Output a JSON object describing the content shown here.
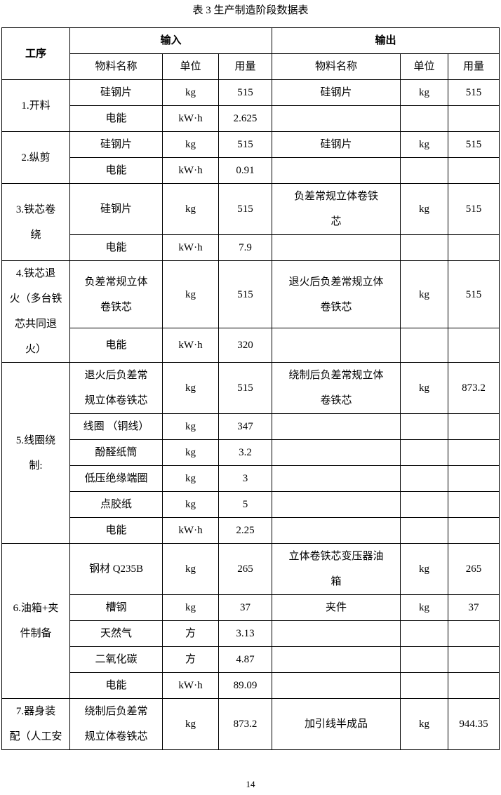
{
  "title": "表 3  生产制造阶段数据表",
  "header": {
    "process": "工序",
    "input": "输入",
    "output": "输出",
    "sub": [
      "物料名称",
      "单位",
      "用量",
      "物料名称",
      "单位",
      "用量"
    ]
  },
  "groups": [
    {
      "process": [
        "1.开料"
      ],
      "rows": [
        {
          "in_name": [
            "硅钢片"
          ],
          "in_unit": "kg",
          "in_qty": "515",
          "out_name": [
            "硅钢片"
          ],
          "out_unit": "kg",
          "out_qty": "515"
        },
        {
          "in_name": [
            "电能"
          ],
          "in_unit": "kW·h",
          "in_qty": "2.625",
          "out_name": [],
          "out_unit": "",
          "out_qty": ""
        }
      ]
    },
    {
      "process": [
        "2.纵剪"
      ],
      "rows": [
        {
          "in_name": [
            "硅钢片"
          ],
          "in_unit": "kg",
          "in_qty": "515",
          "out_name": [
            "硅钢片"
          ],
          "out_unit": "kg",
          "out_qty": "515"
        },
        {
          "in_name": [
            "电能"
          ],
          "in_unit": "kW·h",
          "in_qty": "0.91",
          "out_name": [],
          "out_unit": "",
          "out_qty": ""
        }
      ]
    },
    {
      "process": [
        "3.铁芯卷",
        "绕"
      ],
      "rows": [
        {
          "in_name": [
            "硅钢片"
          ],
          "in_unit": "kg",
          "in_qty": "515",
          "out_name": [
            "负差常规立体卷铁",
            "芯"
          ],
          "out_unit": "kg",
          "out_qty": "515"
        },
        {
          "in_name": [
            "电能"
          ],
          "in_unit": "kW·h",
          "in_qty": "7.9",
          "out_name": [],
          "out_unit": "",
          "out_qty": ""
        }
      ]
    },
    {
      "process": [
        "4.铁芯退",
        "火（多台铁",
        "芯共同退",
        "火）"
      ],
      "rows": [
        {
          "in_name": [
            "负差常规立体",
            "卷铁芯"
          ],
          "in_unit": "kg",
          "in_qty": "515",
          "out_name": [
            "退火后负差常规立体",
            "卷铁芯"
          ],
          "out_unit": "kg",
          "out_qty": "515"
        },
        {
          "in_name": [
            "电能"
          ],
          "in_unit": "kW·h",
          "in_qty": "320",
          "out_name": [],
          "out_unit": "",
          "out_qty": ""
        }
      ]
    },
    {
      "process": [
        "5.线圈绕",
        "制:"
      ],
      "rows": [
        {
          "in_name": [
            "退火后负差常",
            "规立体卷铁芯"
          ],
          "in_unit": "kg",
          "in_qty": "515",
          "out_name": [
            "绕制后负差常规立体",
            "卷铁芯"
          ],
          "out_unit": "kg",
          "out_qty": "873.2"
        },
        {
          "in_name": [
            "线圈 （铜线）"
          ],
          "in_unit": "kg",
          "in_qty": "347",
          "out_name": [],
          "out_unit": "",
          "out_qty": ""
        },
        {
          "in_name": [
            "酚醛纸筒"
          ],
          "in_unit": "kg",
          "in_qty": "3.2",
          "out_name": [],
          "out_unit": "",
          "out_qty": ""
        },
        {
          "in_name": [
            "低压绝缘端圈"
          ],
          "in_unit": "kg",
          "in_qty": "3",
          "out_name": [],
          "out_unit": "",
          "out_qty": ""
        },
        {
          "in_name": [
            "点胶纸"
          ],
          "in_unit": "kg",
          "in_qty": "5",
          "out_name": [],
          "out_unit": "",
          "out_qty": ""
        },
        {
          "in_name": [
            "电能"
          ],
          "in_unit": "kW·h",
          "in_qty": "2.25",
          "out_name": [],
          "out_unit": "",
          "out_qty": ""
        }
      ]
    },
    {
      "process": [
        "6.油箱+夹",
        "件制备"
      ],
      "rows": [
        {
          "in_name": [
            "钢材 Q235B"
          ],
          "in_unit": "kg",
          "in_qty": "265",
          "out_name": [
            "立体卷铁芯变压器油",
            "箱"
          ],
          "out_unit": "kg",
          "out_qty": "265"
        },
        {
          "in_name": [
            "槽钢"
          ],
          "in_unit": "kg",
          "in_qty": "37",
          "out_name": [
            "夹件"
          ],
          "out_unit": "kg",
          "out_qty": "37"
        },
        {
          "in_name": [
            "天然气"
          ],
          "in_unit": "方",
          "in_qty": "3.13",
          "out_name": [],
          "out_unit": "",
          "out_qty": ""
        },
        {
          "in_name": [
            "二氧化碳"
          ],
          "in_unit": "方",
          "in_qty": "4.87",
          "out_name": [],
          "out_unit": "",
          "out_qty": ""
        },
        {
          "in_name": [
            "电能"
          ],
          "in_unit": "kW·h",
          "in_qty": "89.09",
          "out_name": [],
          "out_unit": "",
          "out_qty": ""
        }
      ]
    },
    {
      "process": [
        "7.器身装",
        "配（人工安"
      ],
      "rows": [
        {
          "in_name": [
            "绕制后负差常",
            "规立体卷铁芯"
          ],
          "in_unit": "kg",
          "in_qty": "873.2",
          "out_name": [
            "加引线半成品"
          ],
          "out_unit": "kg",
          "out_qty": "944.35"
        }
      ]
    }
  ],
  "page_number": "14"
}
